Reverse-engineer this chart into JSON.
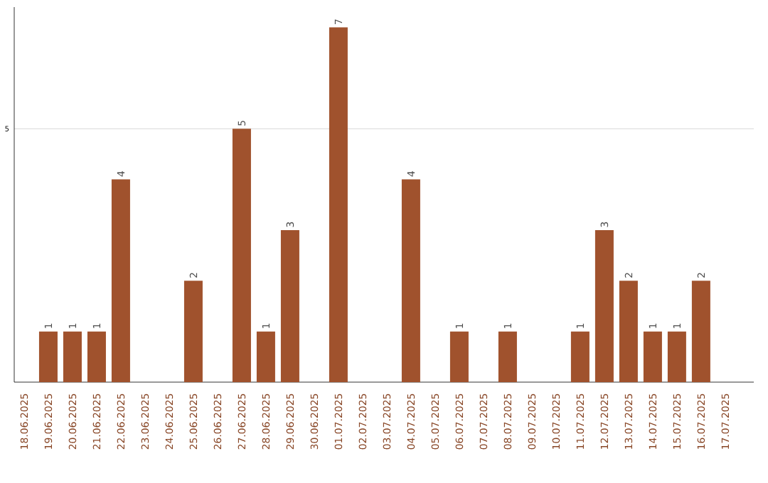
{
  "chart_data": {
    "type": "bar",
    "categories": [
      "18.06.2025",
      "19.06.2025",
      "20.06.2025",
      "21.06.2025",
      "22.06.2025",
      "23.06.2025",
      "24.06.2025",
      "25.06.2025",
      "26.06.2025",
      "27.06.2025",
      "28.06.2025",
      "29.06.2025",
      "30.06.2025",
      "01.07.2025",
      "02.07.2025",
      "03.07.2025",
      "04.07.2025",
      "05.07.2025",
      "06.07.2025",
      "07.07.2025",
      "08.07.2025",
      "09.07.2025",
      "10.07.2025",
      "11.07.2025",
      "12.07.2025",
      "13.07.2025",
      "14.07.2025",
      "15.07.2025",
      "16.07.2025",
      "17.07.2025"
    ],
    "values": [
      0,
      1,
      1,
      1,
      4,
      0,
      0,
      2,
      0,
      5,
      1,
      3,
      0,
      7,
      0,
      0,
      4,
      0,
      1,
      0,
      1,
      0,
      0,
      1,
      3,
      2,
      1,
      1,
      2,
      0
    ],
    "value_labels": [
      null,
      "1",
      "1",
      "1",
      "4",
      null,
      null,
      "2",
      null,
      "5",
      "1",
      "3",
      null,
      "7",
      null,
      null,
      "4",
      null,
      "1",
      null,
      "1",
      null,
      null,
      "1",
      "3",
      "2",
      "1",
      "1",
      "2",
      null
    ],
    "color": "#a0522d",
    "ylim": [
      0,
      7.4
    ],
    "yticks": [
      5
    ],
    "grid": "y"
  }
}
